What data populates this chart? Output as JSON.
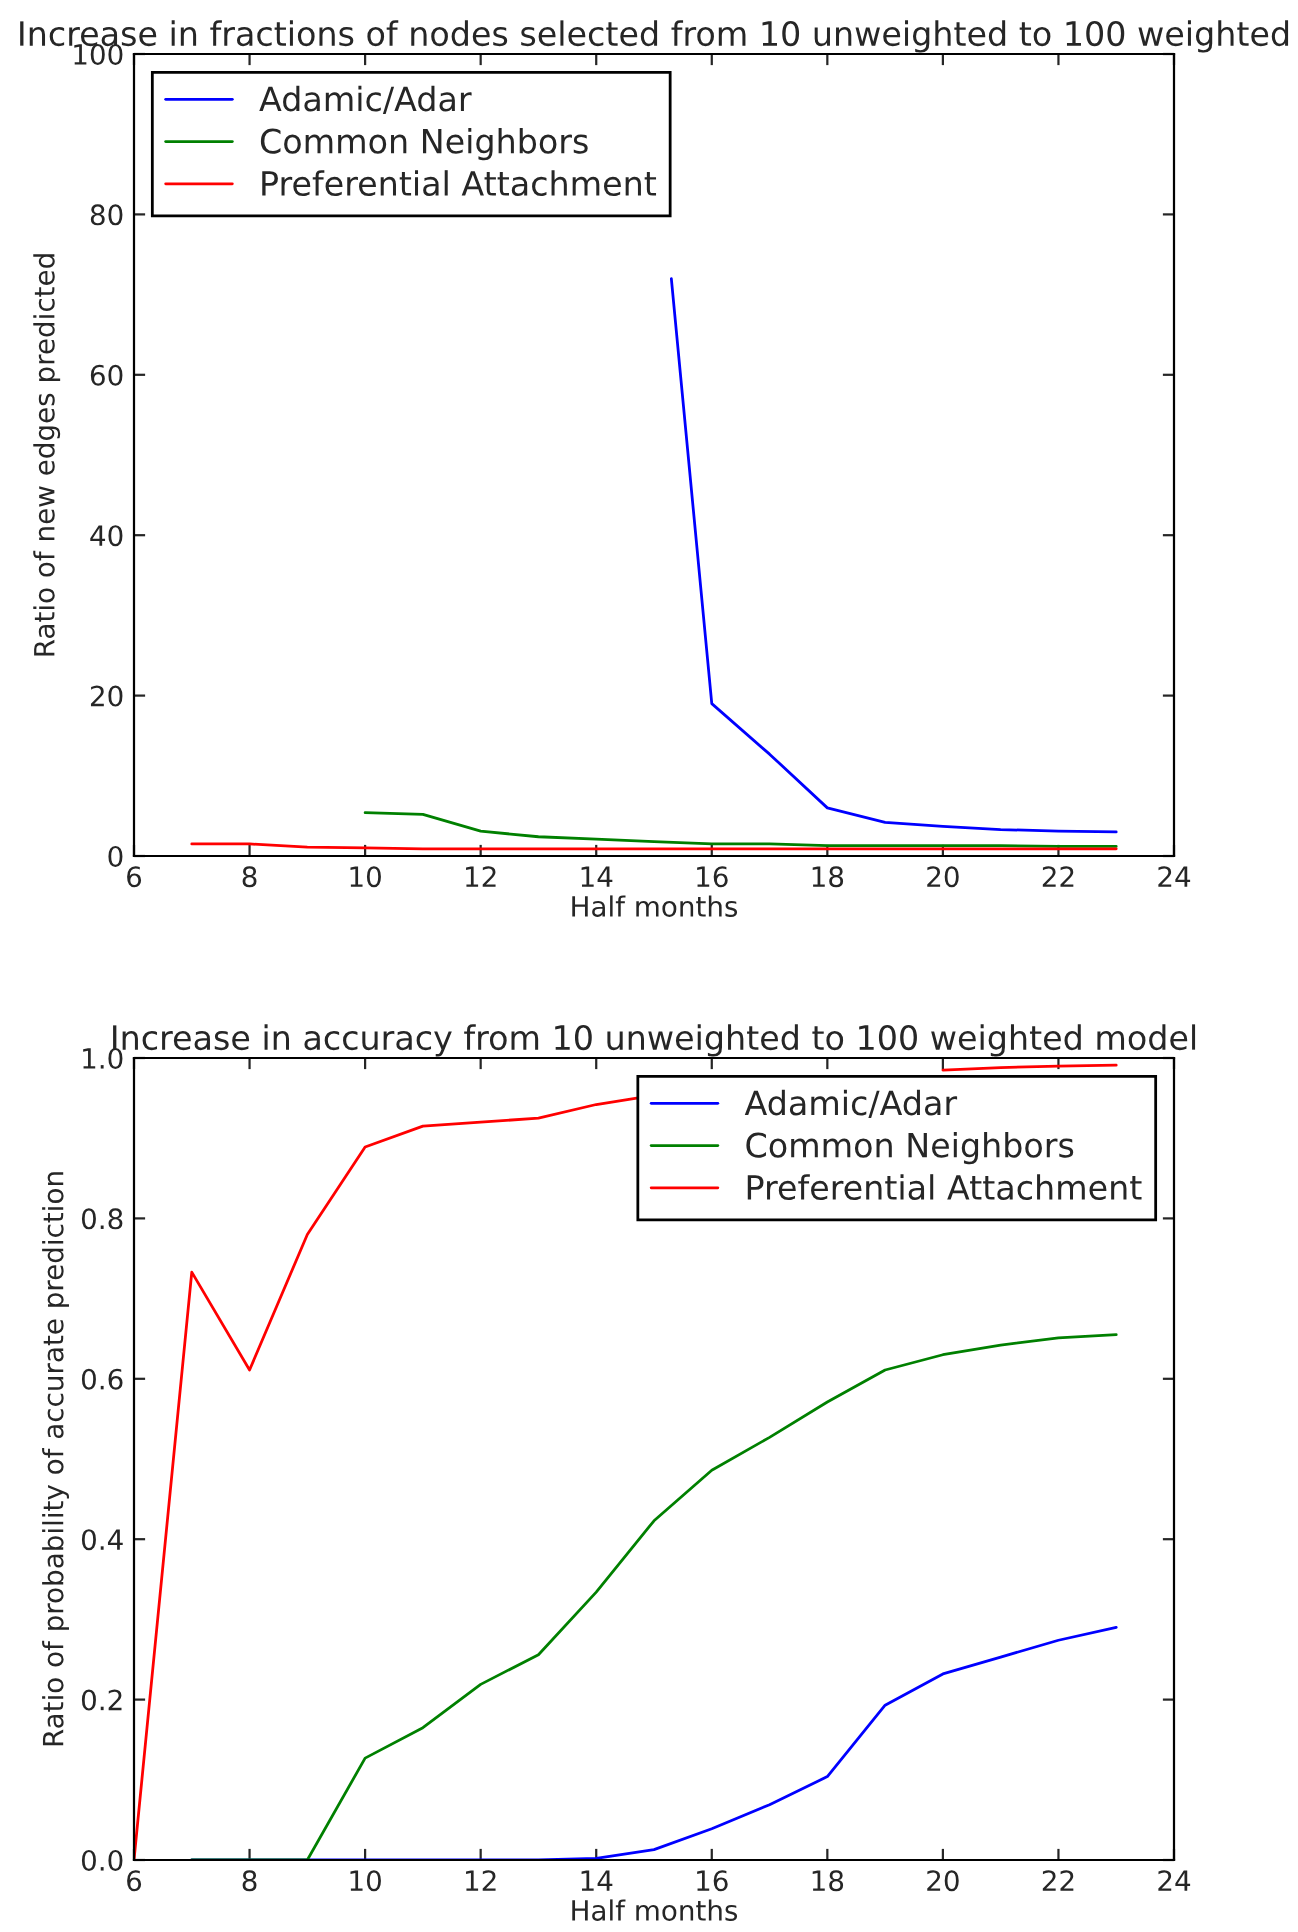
{
  "chart_data": [
    {
      "type": "line",
      "title": "Increase in fractions of nodes selected from 10 unweighted to 100 weighted",
      "xlabel": "Half months",
      "ylabel": "Ratio of new edges predicted",
      "xlim": [
        6,
        24
      ],
      "xticks": [
        6,
        8,
        10,
        12,
        14,
        16,
        18,
        20,
        22,
        24
      ],
      "ylim": [
        0,
        100
      ],
      "yticks": [
        0,
        20,
        40,
        60,
        80,
        100
      ],
      "legend": "top left",
      "grid": false,
      "series": [
        {
          "name": "Adamic/Adar",
          "color": "#0000ff",
          "x": [
            15.3,
            16,
            17,
            18,
            19,
            20,
            21,
            22,
            23
          ],
          "values": [
            72,
            19.0,
            12.7,
            6.0,
            4.2,
            3.7,
            3.3,
            3.1,
            3.0
          ]
        },
        {
          "name": "Common Neighbors",
          "color": "#008000",
          "x": [
            10,
            11,
            12,
            13,
            14,
            15,
            16,
            17,
            18,
            19,
            20,
            21,
            22,
            23
          ],
          "values": [
            5.4,
            5.2,
            3.1,
            2.4,
            2.1,
            1.8,
            1.5,
            1.5,
            1.3,
            1.3,
            1.3,
            1.3,
            1.2,
            1.2
          ]
        },
        {
          "name": "Preferential Attachment",
          "color": "#ff0000",
          "x": [
            7,
            8,
            9,
            10,
            11,
            12,
            13,
            14,
            15,
            16,
            17,
            18,
            19,
            20,
            21,
            22,
            23
          ],
          "values": [
            1.5,
            1.5,
            1.1,
            1.0,
            0.9,
            0.9,
            0.9,
            0.9,
            0.9,
            0.9,
            0.9,
            0.9,
            0.9,
            0.9,
            0.9,
            0.9,
            0.9
          ]
        }
      ]
    },
    {
      "type": "line",
      "title": "Increase in accuracy from 10 unweighted to 100 weighted model",
      "xlabel": "Half months",
      "ylabel": "Ratio of probability of accurate prediction",
      "xlim": [
        6,
        24
      ],
      "xticks": [
        6,
        8,
        10,
        12,
        14,
        16,
        18,
        20,
        22,
        24
      ],
      "ylim": [
        0,
        1
      ],
      "yticks": [
        {
          "value": 0,
          "label": "0.0"
        },
        0.2,
        0.4,
        0.6,
        0.8,
        {
          "value": 1,
          "label": "1.0"
        }
      ],
      "legend": "top right",
      "grid": false,
      "series": [
        {
          "name": "Adamic/Adar",
          "color": "#0000ff",
          "x": [
            7,
            8,
            9,
            10,
            11,
            12,
            13,
            14,
            15,
            16,
            17,
            18,
            19,
            20,
            21,
            22,
            23
          ],
          "values": [
            0,
            0,
            0,
            0,
            0,
            0,
            0,
            0.002,
            0.013,
            0.039,
            0.069,
            0.104,
            0.193,
            0.232,
            0.253,
            0.274,
            0.29
          ]
        },
        {
          "name": "Common Neighbors",
          "color": "#008000",
          "x": [
            7,
            8,
            9,
            10,
            11,
            12,
            13,
            14,
            15,
            16,
            17,
            18,
            19,
            20,
            21,
            22,
            23
          ],
          "values": [
            0,
            0,
            0,
            0.127,
            0.165,
            0.219,
            0.256,
            0.334,
            0.423,
            0.486,
            0.527,
            0.571,
            0.611,
            0.63,
            0.642,
            0.651,
            0.655
          ]
        },
        {
          "name": "Preferential Attachment",
          "color": "#ff0000",
          "x": [
            6,
            7,
            8,
            9,
            10,
            11,
            12,
            13,
            14,
            14.7,
            15,
            16,
            17,
            18,
            19,
            20,
            21,
            22,
            23
          ],
          "values": [
            0,
            0.733,
            0.611,
            0.78,
            0.889,
            0.915,
            0.92,
            0.925,
            0.942,
            0.95,
            null,
            null,
            null,
            null,
            null,
            0.985,
            0.988,
            0.99,
            0.991
          ]
        }
      ]
    }
  ]
}
